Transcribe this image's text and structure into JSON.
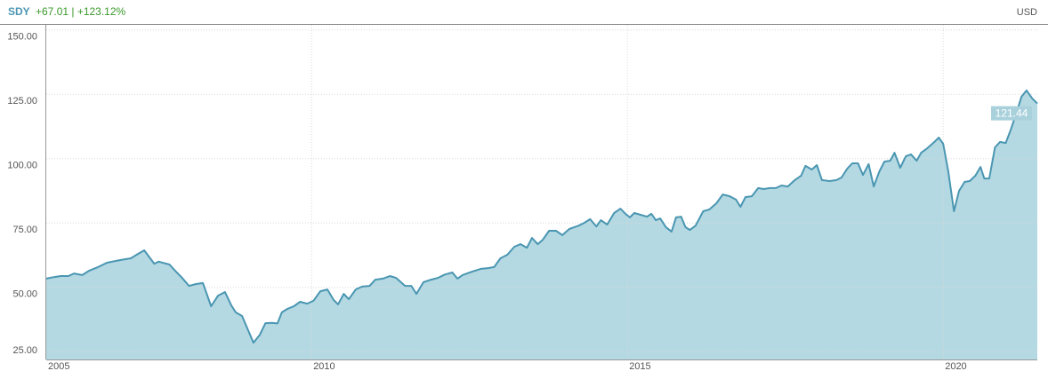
{
  "chart_data": {
    "type": "area",
    "subtitle": "+67.01 | +123.12%",
    "currency": "USD",
    "series": [
      {
        "name": "SDY",
        "color": "#4a96b2",
        "fill": "#b4d9e2",
        "values": [
          53.4,
          54,
          54.4,
          54.4,
          55.4,
          54.8,
          56.5,
          57.9,
          59.6,
          60.6,
          61.3,
          63,
          64.4,
          59.2,
          60,
          58.9,
          56.5,
          54,
          50.6,
          51.3,
          51.7,
          42.7,
          46.8,
          48.2,
          43,
          40.3,
          38.9,
          28.5,
          31.6,
          36.1,
          36.2,
          36,
          40.3,
          41.7,
          42.7,
          44.4,
          43.7,
          44.8,
          48.5,
          49.2,
          45.1,
          43.4,
          47.5,
          45.4,
          49.2,
          50.3,
          50.6,
          53,
          53.4,
          54.4,
          53.7,
          50.6,
          50.6,
          47.5,
          52,
          53,
          53.7,
          55,
          55.8,
          53.4,
          54.8,
          56.1,
          57.2,
          57.5,
          57.9,
          61.3,
          62.7,
          65.8,
          66.8,
          65.4,
          69.2,
          66.8,
          68.5,
          72,
          72,
          70.3,
          72.7,
          74,
          75.1,
          76.5,
          73.7,
          76.1,
          74.4,
          78.9,
          80.6,
          78.6,
          77.2,
          78.9,
          78.2,
          77.5,
          78.6,
          76.1,
          76.8,
          73.4,
          71.7,
          77.2,
          77.5,
          73.4,
          72.3,
          74,
          79.6,
          80.3,
          82.7,
          86.1,
          85.4,
          84.1,
          81.3,
          85.1,
          85.4,
          88.6,
          88.2,
          88.6,
          88.6,
          89.6,
          89.2,
          91.7,
          93.4,
          97.2,
          95.8,
          97.5,
          91.7,
          91.3,
          91.7,
          92.7,
          96.1,
          98.2,
          98.2,
          93.7,
          97.9,
          89.2,
          95.1,
          98.9,
          99.2,
          102.3,
          96.5,
          101,
          101.7,
          99.2,
          102.3,
          104.1,
          106.5,
          108.2,
          105.8,
          95.1,
          79.6,
          87.5,
          91,
          91.3,
          93.4,
          96.8,
          92.3,
          92.3,
          104.4,
          106.5,
          106.1,
          111.3,
          117.9,
          124.1,
          126.5,
          123.4,
          121.44
        ]
      }
    ],
    "x": [
      2005.8,
      2005.92,
      2006.03,
      2006.15,
      2006.24,
      2006.37,
      2006.48,
      2006.62,
      2006.76,
      2006.96,
      2007.14,
      2007.25,
      2007.35,
      2007.51,
      2007.58,
      2007.75,
      2007.84,
      2007.94,
      2008.06,
      2008.17,
      2008.28,
      2008.41,
      2008.52,
      2008.63,
      2008.73,
      2008.8,
      2008.9,
      2009.08,
      2009.18,
      2009.27,
      2009.37,
      2009.46,
      2009.53,
      2009.62,
      2009.72,
      2009.82,
      2009.93,
      2010.03,
      2010.14,
      2010.25,
      2010.35,
      2010.42,
      2010.51,
      2010.59,
      2010.7,
      2010.8,
      2010.92,
      2011.01,
      2011.13,
      2011.24,
      2011.34,
      2011.48,
      2011.58,
      2011.66,
      2011.77,
      2011.89,
      2012.0,
      2012.11,
      2012.23,
      2012.31,
      2012.39,
      2012.54,
      2012.68,
      2012.79,
      2012.89,
      2012.99,
      2013.1,
      2013.21,
      2013.31,
      2013.41,
      2013.49,
      2013.58,
      2013.66,
      2013.76,
      2013.87,
      2013.97,
      2014.08,
      2014.23,
      2014.32,
      2014.41,
      2014.51,
      2014.58,
      2014.68,
      2014.79,
      2014.89,
      2014.97,
      2015.04,
      2015.11,
      2015.21,
      2015.31,
      2015.38,
      2015.45,
      2015.52,
      2015.61,
      2015.7,
      2015.77,
      2015.85,
      2015.92,
      2015.99,
      2016.08,
      2016.2,
      2016.3,
      2016.41,
      2016.51,
      2016.62,
      2016.72,
      2016.79,
      2016.87,
      2016.97,
      2017.07,
      2017.16,
      2017.25,
      2017.35,
      2017.44,
      2017.54,
      2017.65,
      2017.75,
      2017.82,
      2017.92,
      2018.0,
      2018.08,
      2018.2,
      2018.31,
      2018.39,
      2018.48,
      2018.56,
      2018.65,
      2018.73,
      2018.82,
      2018.9,
      2018.99,
      2019.07,
      2019.16,
      2019.23,
      2019.32,
      2019.41,
      2019.49,
      2019.58,
      2019.65,
      2019.75,
      2019.86,
      2019.93,
      2020.0,
      2020.08,
      2020.17,
      2020.25,
      2020.34,
      2020.42,
      2020.51,
      2020.59,
      2020.65,
      2020.73,
      2020.82,
      2020.9,
      2020.99,
      2021.07,
      2021.16,
      2021.24,
      2021.32,
      2021.41,
      2021.49
    ],
    "xlim": [
      2005.8,
      2021.49
    ],
    "xticks": [
      2005,
      2010,
      2015,
      2020
    ],
    "ylim": [
      22,
      152
    ],
    "yticks": [
      {
        "value": 25,
        "label": "25.00"
      },
      {
        "value": 50,
        "label": "50.00"
      },
      {
        "value": 75,
        "label": "75.00"
      },
      {
        "value": 100,
        "label": "100.00"
      },
      {
        "value": 125,
        "label": "125.00"
      },
      {
        "value": 150,
        "label": "150.00"
      }
    ],
    "grid": true
  }
}
